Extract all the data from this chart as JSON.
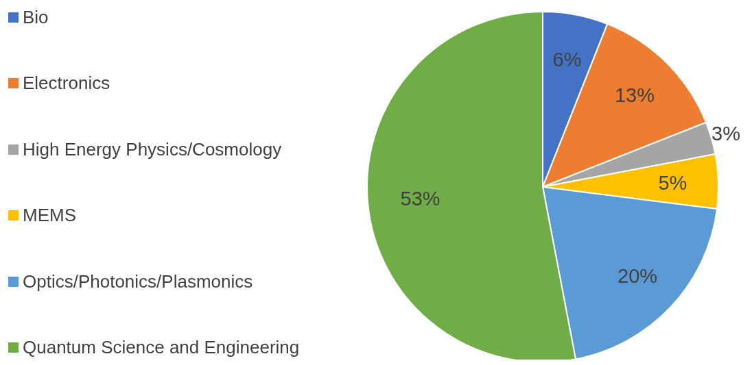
{
  "chart_data": {
    "type": "pie",
    "categories": [
      "Bio",
      "Electronics",
      "High Energy Physics/Cosmology",
      "MEMS",
      "Optics/Photonics/Plasmonics",
      "Quantum Science and Engineering"
    ],
    "values": [
      6,
      13,
      3,
      5,
      20,
      53
    ],
    "colors": [
      "#4472c4",
      "#ed7d31",
      "#a5a5a5",
      "#ffc000",
      "#5b9bd5",
      "#70ad47"
    ],
    "value_labels": [
      "6%",
      "13%",
      "3%",
      "5%",
      "20%",
      "53%"
    ],
    "legend": "left"
  }
}
